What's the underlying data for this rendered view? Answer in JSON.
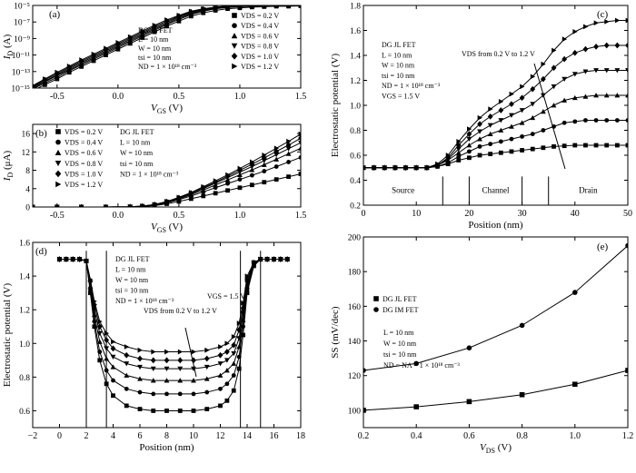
{
  "chart_data": [
    {
      "id": "a",
      "type": "line",
      "panel_label": "(a)",
      "xlabel": "V_GS (V)",
      "ylabel": "I_D (A)",
      "xlim": [
        -0.7,
        1.5
      ],
      "ylim": [
        -15,
        -5
      ],
      "y_scale": "log10",
      "x_ticks": [
        -0.5,
        0.0,
        0.5,
        1.0,
        1.5
      ],
      "x_tick_labels": [
        "-0.5",
        "0.0",
        "0.5",
        "1.0",
        "1.5"
      ],
      "y_ticks": [
        -15,
        -13,
        -11,
        -9,
        -7,
        -5
      ],
      "y_tick_labels": [
        "10⁻¹⁵",
        "10⁻¹³",
        "10⁻¹¹",
        "10⁻⁹",
        "10⁻⁷",
        "10⁻⁵"
      ],
      "annotations": [
        "DG JL FET",
        "L = 10 nm",
        "W = 10 nm",
        "tsi = 10 nm",
        "ND = 1 × 10¹⁸ cm⁻³"
      ],
      "legend_position": "right",
      "x": [
        -0.7,
        -0.6,
        -0.5,
        -0.4,
        -0.3,
        -0.2,
        -0.1,
        0.0,
        0.1,
        0.2,
        0.3,
        0.4,
        0.5,
        0.6,
        0.7,
        0.8,
        0.9,
        1.0,
        1.1,
        1.2,
        1.3,
        1.4,
        1.5
      ],
      "series": [
        {
          "name": "VDS = 0.2 V",
          "marker": "square",
          "log_values": [
            -15.3,
            -14.6,
            -13.9,
            -13.1,
            -12.4,
            -11.7,
            -11.0,
            -10.3,
            -9.6,
            -8.9,
            -8.2,
            -7.5,
            -6.9,
            -6.3,
            -5.9,
            -5.6,
            -5.4,
            -5.3,
            -5.2,
            -5.15,
            -5.1,
            -5.1,
            -5.05
          ]
        },
        {
          "name": "VDS = 0.4 V",
          "marker": "circle",
          "log_values": [
            -15.1,
            -14.4,
            -13.7,
            -12.9,
            -12.2,
            -11.5,
            -10.8,
            -10.1,
            -9.4,
            -8.7,
            -8.0,
            -7.3,
            -6.7,
            -6.1,
            -5.7,
            -5.4,
            -5.25,
            -5.15,
            -5.1,
            -5.05,
            -5.0,
            -5.0,
            -4.95
          ]
        },
        {
          "name": "VDS = 0.6 V",
          "marker": "triangle-up",
          "log_values": [
            -15.0,
            -14.25,
            -13.5,
            -12.8,
            -12.05,
            -11.35,
            -10.65,
            -9.95,
            -9.25,
            -8.55,
            -7.85,
            -7.2,
            -6.55,
            -6.0,
            -5.6,
            -5.35,
            -5.2,
            -5.1,
            -5.05,
            -5.0,
            -4.97,
            -4.95,
            -4.93
          ]
        },
        {
          "name": "VDS = 0.8 V",
          "marker": "triangle-down",
          "log_values": [
            -14.9,
            -14.15,
            -13.4,
            -12.65,
            -11.9,
            -11.2,
            -10.5,
            -9.8,
            -9.1,
            -8.4,
            -7.7,
            -7.05,
            -6.4,
            -5.9,
            -5.5,
            -5.3,
            -5.15,
            -5.05,
            -5.0,
            -4.97,
            -4.95,
            -4.93,
            -4.9
          ]
        },
        {
          "name": "VDS = 1.0 V",
          "marker": "diamond",
          "log_values": [
            -14.8,
            -14.0,
            -13.25,
            -12.5,
            -11.75,
            -11.05,
            -10.35,
            -9.65,
            -8.95,
            -8.25,
            -7.55,
            -6.9,
            -6.3,
            -5.8,
            -5.45,
            -5.25,
            -5.1,
            -5.0,
            -4.97,
            -4.95,
            -4.92,
            -4.9,
            -4.88
          ]
        },
        {
          "name": "VDS = 1.2 V",
          "marker": "triangle-right",
          "log_values": [
            -14.7,
            -13.9,
            -13.1,
            -12.35,
            -11.6,
            -10.9,
            -10.2,
            -9.5,
            -8.8,
            -8.1,
            -7.4,
            -6.75,
            -6.2,
            -5.7,
            -5.4,
            -5.2,
            -5.05,
            -4.97,
            -4.93,
            -4.9,
            -4.88,
            -4.86,
            -4.85
          ]
        }
      ]
    },
    {
      "id": "b",
      "type": "line",
      "panel_label": "(b)",
      "xlabel": "V_GS (V)",
      "ylabel": "I_D (μA)",
      "xlim": [
        -0.7,
        1.5
      ],
      "ylim": [
        0,
        18
      ],
      "x_ticks": [
        -0.5,
        0.0,
        0.5,
        1.0,
        1.5
      ],
      "x_tick_labels": [
        "-0.5",
        "0.0",
        "0.5",
        "1.0",
        "1.5"
      ],
      "y_ticks": [
        0,
        4,
        8,
        12,
        16
      ],
      "y_tick_labels": [
        "0",
        "4",
        "8",
        "12",
        "16"
      ],
      "annotations": [
        "DG JL FET",
        "L = 10 nm",
        "W = 10 nm",
        "tsi = 10 nm",
        "ND = 1 × 10¹⁸ cm⁻³"
      ],
      "legend_position": "top-left",
      "x": [
        -0.7,
        -0.5,
        -0.3,
        -0.1,
        0.1,
        0.2,
        0.3,
        0.4,
        0.5,
        0.6,
        0.7,
        0.8,
        0.9,
        1.0,
        1.1,
        1.2,
        1.3,
        1.4,
        1.5
      ],
      "series": [
        {
          "name": "VDS = 0.2 V",
          "marker": "square",
          "values": [
            0,
            0,
            0,
            0,
            0.02,
            0.1,
            0.3,
            0.7,
            1.2,
            1.8,
            2.4,
            3.0,
            3.6,
            4.2,
            4.8,
            5.4,
            6.0,
            6.6,
            7.2
          ]
        },
        {
          "name": "VDS = 0.4 V",
          "marker": "circle",
          "values": [
            0,
            0,
            0,
            0,
            0.03,
            0.12,
            0.4,
            0.9,
            1.6,
            2.4,
            3.3,
            4.2,
            5.1,
            6.0,
            6.9,
            7.8,
            8.8,
            9.8,
            10.8
          ]
        },
        {
          "name": "VDS = 0.6 V",
          "marker": "triangle-up",
          "values": [
            0,
            0,
            0,
            0,
            0.04,
            0.15,
            0.45,
            1.0,
            1.8,
            2.7,
            3.7,
            4.8,
            5.9,
            7.0,
            8.1,
            9.2,
            10.4,
            11.6,
            12.8
          ]
        },
        {
          "name": "VDS = 0.8 V",
          "marker": "triangle-down",
          "values": [
            0,
            0,
            0,
            0,
            0.05,
            0.17,
            0.5,
            1.1,
            1.9,
            2.9,
            4.0,
            5.2,
            6.4,
            7.6,
            8.8,
            10.1,
            11.4,
            12.7,
            14.0
          ]
        },
        {
          "name": "VDS = 1.0 V",
          "marker": "diamond",
          "values": [
            0,
            0,
            0,
            0,
            0.05,
            0.18,
            0.52,
            1.15,
            2.0,
            3.0,
            4.2,
            5.4,
            6.7,
            8.0,
            9.3,
            10.7,
            12.1,
            13.5,
            15.0
          ]
        },
        {
          "name": "VDS = 1.2 V",
          "marker": "triangle-right",
          "values": [
            0,
            0,
            0,
            0,
            0.06,
            0.2,
            0.55,
            1.2,
            2.1,
            3.15,
            4.4,
            5.7,
            7.0,
            8.4,
            9.8,
            11.3,
            12.8,
            14.3,
            15.9
          ]
        }
      ]
    },
    {
      "id": "c",
      "type": "line",
      "panel_label": "(c)",
      "xlabel": "Position (nm)",
      "ylabel": "Electrostatic potential (V)",
      "xlim": [
        0,
        50
      ],
      "ylim": [
        0.2,
        1.8
      ],
      "x_ticks": [
        0,
        10,
        20,
        30,
        40,
        50
      ],
      "x_tick_labels": [
        "0",
        "10",
        "20",
        "30",
        "40",
        "50"
      ],
      "y_ticks": [
        0.2,
        0.4,
        0.6,
        0.8,
        1.0,
        1.2,
        1.4,
        1.6,
        1.8
      ],
      "y_tick_labels": [
        "0.2",
        "0.4",
        "0.6",
        "0.8",
        "1.0",
        "1.2",
        "1.4",
        "1.6",
        "1.8"
      ],
      "annotations": [
        "DG JL FET",
        "L = 10 nm",
        "W = 10 nm",
        "tsi = 10 nm",
        "ND = 1 × 10¹⁸ cm⁻³",
        "VGS = 1.5 V",
        "VDS from 0.2 V to 1.2 V"
      ],
      "region_labels": [
        "Source",
        "Channel",
        "Drain"
      ],
      "region_dividers": [
        15,
        20,
        30,
        35
      ],
      "x": [
        0,
        2,
        4,
        6,
        8,
        10,
        12,
        14,
        16,
        18,
        20,
        22,
        24,
        26,
        28,
        30,
        32,
        34,
        36,
        38,
        40,
        42,
        44,
        46,
        48,
        50
      ],
      "series": [
        {
          "name": "VDS = 0.2 V",
          "values": [
            0.5,
            0.5,
            0.5,
            0.5,
            0.5,
            0.5,
            0.5,
            0.51,
            0.53,
            0.56,
            0.58,
            0.6,
            0.61,
            0.62,
            0.63,
            0.64,
            0.65,
            0.66,
            0.67,
            0.675,
            0.68,
            0.68,
            0.68,
            0.68,
            0.68,
            0.68
          ]
        },
        {
          "name": "VDS = 0.4 V",
          "values": [
            0.5,
            0.5,
            0.5,
            0.5,
            0.5,
            0.5,
            0.5,
            0.51,
            0.54,
            0.59,
            0.63,
            0.67,
            0.69,
            0.71,
            0.73,
            0.75,
            0.77,
            0.8,
            0.83,
            0.86,
            0.87,
            0.88,
            0.88,
            0.88,
            0.88,
            0.88
          ]
        },
        {
          "name": "VDS = 0.6 V",
          "values": [
            0.5,
            0.5,
            0.5,
            0.5,
            0.5,
            0.5,
            0.5,
            0.52,
            0.56,
            0.62,
            0.68,
            0.73,
            0.77,
            0.8,
            0.83,
            0.86,
            0.9,
            0.95,
            1.0,
            1.04,
            1.06,
            1.07,
            1.08,
            1.08,
            1.08,
            1.08
          ]
        },
        {
          "name": "VDS = 0.8 V",
          "values": [
            0.5,
            0.5,
            0.5,
            0.5,
            0.5,
            0.5,
            0.5,
            0.52,
            0.57,
            0.65,
            0.73,
            0.79,
            0.84,
            0.88,
            0.92,
            0.96,
            1.01,
            1.08,
            1.15,
            1.21,
            1.25,
            1.27,
            1.28,
            1.28,
            1.28,
            1.28
          ]
        },
        {
          "name": "VDS = 1.0 V",
          "values": [
            0.5,
            0.5,
            0.5,
            0.5,
            0.5,
            0.5,
            0.5,
            0.52,
            0.58,
            0.68,
            0.77,
            0.85,
            0.91,
            0.96,
            1.01,
            1.06,
            1.13,
            1.21,
            1.3,
            1.37,
            1.42,
            1.45,
            1.47,
            1.48,
            1.48,
            1.48
          ]
        },
        {
          "name": "VDS = 1.2 V",
          "values": [
            0.5,
            0.5,
            0.5,
            0.5,
            0.5,
            0.5,
            0.5,
            0.53,
            0.6,
            0.71,
            0.81,
            0.9,
            0.97,
            1.03,
            1.09,
            1.15,
            1.23,
            1.33,
            1.44,
            1.53,
            1.59,
            1.63,
            1.66,
            1.67,
            1.68,
            1.68
          ]
        }
      ]
    },
    {
      "id": "d",
      "type": "line",
      "panel_label": "(d)",
      "xlabel": "Position (nm)",
      "ylabel": "Electrostatic potential (V)",
      "xlim": [
        -2,
        18
      ],
      "ylim": [
        0.5,
        1.6
      ],
      "x_ticks": [
        -2,
        0,
        2,
        4,
        6,
        8,
        10,
        12,
        14,
        16,
        18
      ],
      "x_tick_labels": [
        "−2",
        "0",
        "2",
        "4",
        "6",
        "8",
        "10",
        "12",
        "14",
        "16",
        "18"
      ],
      "y_ticks": [
        0.6,
        0.8,
        1.0,
        1.2,
        1.4,
        1.6
      ],
      "y_tick_labels": [
        "0.6",
        "0.8",
        "1.0",
        "1.2",
        "1.4",
        "1.6"
      ],
      "annotations": [
        "DG JL FET",
        "L = 10 nm",
        "W = 10 nm",
        "tsi = 10 nm",
        "ND = 1 × 10¹⁸ cm⁻³",
        "VGS = 1.5 V",
        "VDS from 0.2 V to 1.2 V"
      ],
      "vertical_lines": [
        2,
        3.5,
        13.5,
        15
      ],
      "x": [
        0,
        0.5,
        1,
        1.5,
        2,
        2.3,
        2.6,
        3,
        3.5,
        4,
        5,
        6,
        7,
        8,
        9,
        10,
        11,
        12,
        12.5,
        13,
        13.4,
        13.7,
        14,
        14.5,
        15,
        15.5,
        16,
        16.5,
        17
      ],
      "series": [
        {
          "name": "VDS = 0.2 V",
          "values": [
            1.5,
            1.5,
            1.5,
            1.5,
            1.49,
            1.3,
            1.1,
            0.9,
            0.76,
            0.69,
            0.63,
            0.61,
            0.6,
            0.6,
            0.6,
            0.6,
            0.61,
            0.63,
            0.66,
            0.72,
            0.85,
            1.05,
            1.3,
            1.46,
            1.5,
            1.5,
            1.5,
            1.5,
            1.5
          ]
        },
        {
          "name": "VDS = 0.4 V",
          "values": [
            1.5,
            1.5,
            1.5,
            1.5,
            1.49,
            1.32,
            1.13,
            0.95,
            0.84,
            0.78,
            0.73,
            0.71,
            0.7,
            0.7,
            0.7,
            0.7,
            0.71,
            0.73,
            0.76,
            0.81,
            0.92,
            1.1,
            1.32,
            1.47,
            1.5,
            1.5,
            1.5,
            1.5,
            1.5
          ]
        },
        {
          "name": "VDS = 0.6 V",
          "values": [
            1.5,
            1.5,
            1.5,
            1.5,
            1.49,
            1.34,
            1.17,
            1.01,
            0.91,
            0.86,
            0.81,
            0.79,
            0.78,
            0.78,
            0.78,
            0.78,
            0.79,
            0.81,
            0.84,
            0.88,
            0.98,
            1.14,
            1.34,
            1.47,
            1.5,
            1.5,
            1.5,
            1.5,
            1.5
          ]
        },
        {
          "name": "VDS = 0.8 V",
          "values": [
            1.5,
            1.5,
            1.5,
            1.5,
            1.49,
            1.36,
            1.2,
            1.06,
            0.97,
            0.92,
            0.88,
            0.86,
            0.85,
            0.85,
            0.85,
            0.85,
            0.86,
            0.88,
            0.9,
            0.94,
            1.03,
            1.18,
            1.36,
            1.48,
            1.5,
            1.5,
            1.5,
            1.5,
            1.5
          ]
        },
        {
          "name": "VDS = 1.0 V",
          "values": [
            1.5,
            1.5,
            1.5,
            1.5,
            1.49,
            1.37,
            1.23,
            1.1,
            1.02,
            0.97,
            0.93,
            0.91,
            0.9,
            0.9,
            0.9,
            0.9,
            0.91,
            0.93,
            0.95,
            0.99,
            1.08,
            1.21,
            1.38,
            1.48,
            1.5,
            1.5,
            1.5,
            1.5,
            1.5
          ]
        },
        {
          "name": "VDS = 1.2 V",
          "values": [
            1.5,
            1.5,
            1.5,
            1.5,
            1.49,
            1.38,
            1.25,
            1.13,
            1.06,
            1.01,
            0.98,
            0.96,
            0.95,
            0.95,
            0.95,
            0.95,
            0.96,
            0.98,
            1.0,
            1.04,
            1.12,
            1.24,
            1.4,
            1.48,
            1.5,
            1.5,
            1.5,
            1.5,
            1.5
          ]
        }
      ]
    },
    {
      "id": "e",
      "type": "line",
      "panel_label": "(e)",
      "xlabel": "V_DS (V)",
      "ylabel": "SS (mV/dec)",
      "xlim": [
        0.2,
        1.2
      ],
      "ylim": [
        90,
        200
      ],
      "x_ticks": [
        0.2,
        0.4,
        0.6,
        0.8,
        1.0,
        1.2
      ],
      "x_tick_labels": [
        "0.2",
        "0.4",
        "0.6",
        "0.8",
        "1.0",
        "1.2"
      ],
      "y_ticks": [
        100,
        120,
        140,
        160,
        180,
        200
      ],
      "y_tick_labels": [
        "100",
        "120",
        "140",
        "160",
        "180",
        "200"
      ],
      "annotations": [
        "L = 10 nm",
        "W = 10 nm",
        "tsi = 10 nm",
        "ND = NA = 1 × 10¹⁸ cm⁻³"
      ],
      "legend_position": "top-left",
      "x": [
        0.2,
        0.4,
        0.6,
        0.8,
        1.0,
        1.2
      ],
      "series": [
        {
          "name": "DG JL FET",
          "marker": "square",
          "values": [
            100,
            102,
            105,
            109,
            115,
            123
          ]
        },
        {
          "name": "DG IM FET",
          "marker": "circle",
          "values": [
            123,
            127,
            136,
            149,
            168,
            195
          ]
        }
      ]
    }
  ]
}
